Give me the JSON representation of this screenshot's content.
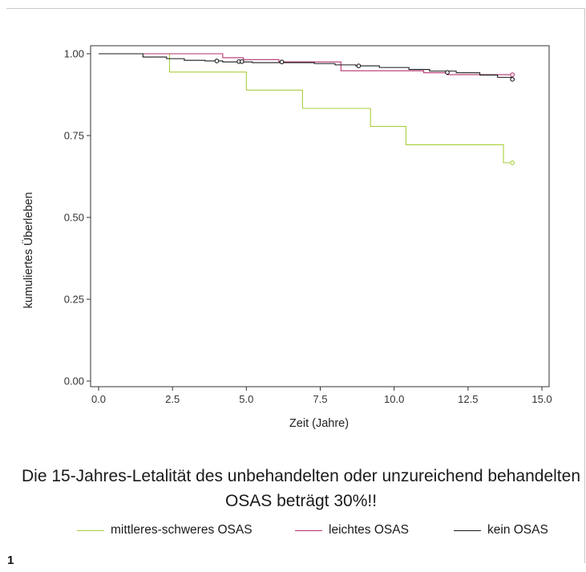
{
  "chart_data": {
    "type": "line",
    "step": true,
    "xlabel": "Zeit (Jahre)",
    "ylabel": "kumuliertes Überleben",
    "xlim": [
      0,
      15
    ],
    "ylim": [
      0,
      1
    ],
    "xticks": [
      "0.0",
      "2.5",
      "5.0",
      "7.5",
      "10.0",
      "12.5",
      "15.0"
    ],
    "yticks": [
      "0.00",
      "0.25",
      "0.50",
      "0.75",
      "1.00"
    ],
    "grid": false,
    "legend_position": "bottom",
    "series": [
      {
        "name": "mittleres-schweres OSAS",
        "color": "#a8cf3a",
        "x": [
          0,
          2.4,
          5.0,
          6.9,
          9.2,
          10.4,
          13.7,
          14.0
        ],
        "y": [
          1.0,
          0.944,
          0.889,
          0.833,
          0.778,
          0.722,
          0.667,
          0.667
        ],
        "censored": [
          [
            14.0,
            0.667
          ]
        ]
      },
      {
        "name": "leichtes OSAS",
        "color": "#b5336f",
        "x": [
          0,
          4.2,
          4.9,
          6.1,
          8.2,
          11.0,
          11.8,
          14.0
        ],
        "y": [
          1.0,
          0.988,
          0.982,
          0.975,
          0.948,
          0.942,
          0.936,
          0.936
        ],
        "censored": [
          [
            14.0,
            0.936
          ]
        ]
      },
      {
        "name": "kein OSAS",
        "color": "#1a1a1a",
        "x": [
          0,
          1.5,
          2.3,
          2.9,
          3.6,
          4.2,
          5.2,
          7.3,
          8.0,
          8.7,
          9.5,
          10.5,
          11.2,
          12.1,
          12.9,
          13.5,
          14.0
        ],
        "y": [
          1.0,
          0.99,
          0.985,
          0.98,
          0.978,
          0.975,
          0.973,
          0.97,
          0.966,
          0.963,
          0.958,
          0.952,
          0.947,
          0.942,
          0.935,
          0.928,
          0.922
        ],
        "censored": [
          [
            4.0,
            0.978
          ],
          [
            4.75,
            0.976
          ],
          [
            4.85,
            0.976
          ],
          [
            6.2,
            0.975
          ],
          [
            8.8,
            0.963
          ],
          [
            11.8,
            0.943
          ],
          [
            14.0,
            0.922
          ]
        ]
      }
    ]
  },
  "caption": "Die 15-Jahres-Letalität des unbehandelten oder unzureichend behandelten OSAS beträgt 30%!!",
  "figure_number": "1"
}
